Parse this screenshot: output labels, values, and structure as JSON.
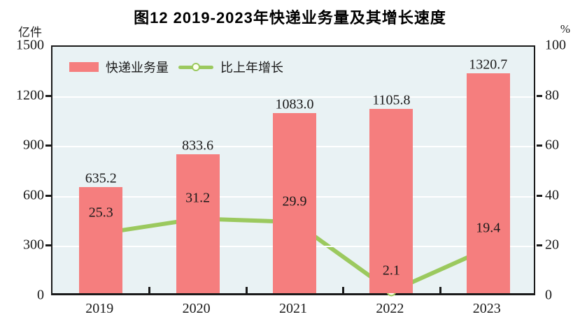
{
  "title": "图12  2019-2023年快递业务量及其增长速度",
  "left_axis_unit": "亿件",
  "right_axis_unit": "%",
  "legend": {
    "bar_label": "快递业务量",
    "line_label": "比上年增长"
  },
  "colors": {
    "bar": "#f57e7e",
    "line": "#9bc95e",
    "marker_fill": "#fdffef",
    "plot_background": "#e9f2f4",
    "gridline": "#ffffff",
    "axis": "#1a1a1a",
    "label_text": "#1a1a1a"
  },
  "chart_data": {
    "type": "bar",
    "subtype": "bar+line combo",
    "title": "图12  2019-2023年快递业务量及其增长速度",
    "categories": [
      "2019",
      "2020",
      "2021",
      "2022",
      "2023"
    ],
    "series": [
      {
        "name": "快递业务量",
        "type": "bar",
        "axis": "left",
        "values": [
          635.2,
          833.6,
          1083.0,
          1105.8,
          1320.7
        ],
        "labels": [
          "635.2",
          "833.6",
          "1083.0",
          "1105.8",
          "1320.7"
        ],
        "color": "#f57e7e"
      },
      {
        "name": "比上年增长",
        "type": "line",
        "axis": "right",
        "values": [
          25.3,
          31.2,
          29.9,
          2.1,
          19.4
        ],
        "labels": [
          "25.3",
          "31.2",
          "29.9",
          "2.1",
          "19.4"
        ],
        "color": "#9bc95e"
      }
    ],
    "left_axis": {
      "label": "亿件",
      "min": 0,
      "max": 1500,
      "ticks": [
        0,
        300,
        600,
        900,
        1200,
        1500
      ]
    },
    "right_axis": {
      "label": "%",
      "min": 0,
      "max": 100,
      "ticks": [
        0,
        20,
        40,
        60,
        80,
        100
      ]
    },
    "grid": true,
    "legend_position": "top-left"
  }
}
